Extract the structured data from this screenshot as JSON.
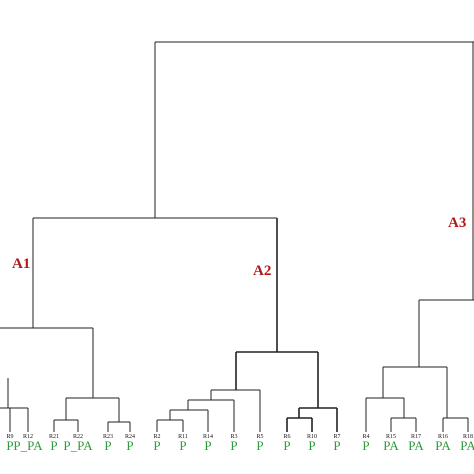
{
  "clusters": [
    {
      "label": "A1"
    },
    {
      "label": "A2"
    },
    {
      "label": "A3"
    }
  ],
  "leaves": [
    {
      "label": "R9",
      "group": "P"
    },
    {
      "label": "R12",
      "group": "P_PA"
    },
    {
      "label": "R21",
      "group": "P"
    },
    {
      "label": "R22",
      "group": "P_PA"
    },
    {
      "label": "R23",
      "group": "P"
    },
    {
      "label": "R24",
      "group": "P"
    },
    {
      "label": "R2",
      "group": "P"
    },
    {
      "label": "R11",
      "group": "P"
    },
    {
      "label": "R14",
      "group": "P"
    },
    {
      "label": "R3",
      "group": "P"
    },
    {
      "label": "R5",
      "group": "P"
    },
    {
      "label": "R6",
      "group": "P"
    },
    {
      "label": "R10",
      "group": "P"
    },
    {
      "label": "R7",
      "group": "P"
    },
    {
      "label": "R4",
      "group": "P"
    },
    {
      "label": "R15",
      "group": "PA"
    },
    {
      "label": "R17",
      "group": "PA"
    },
    {
      "label": "R16",
      "group": "PA"
    },
    {
      "label": "R18",
      "group": "PA"
    }
  ]
}
